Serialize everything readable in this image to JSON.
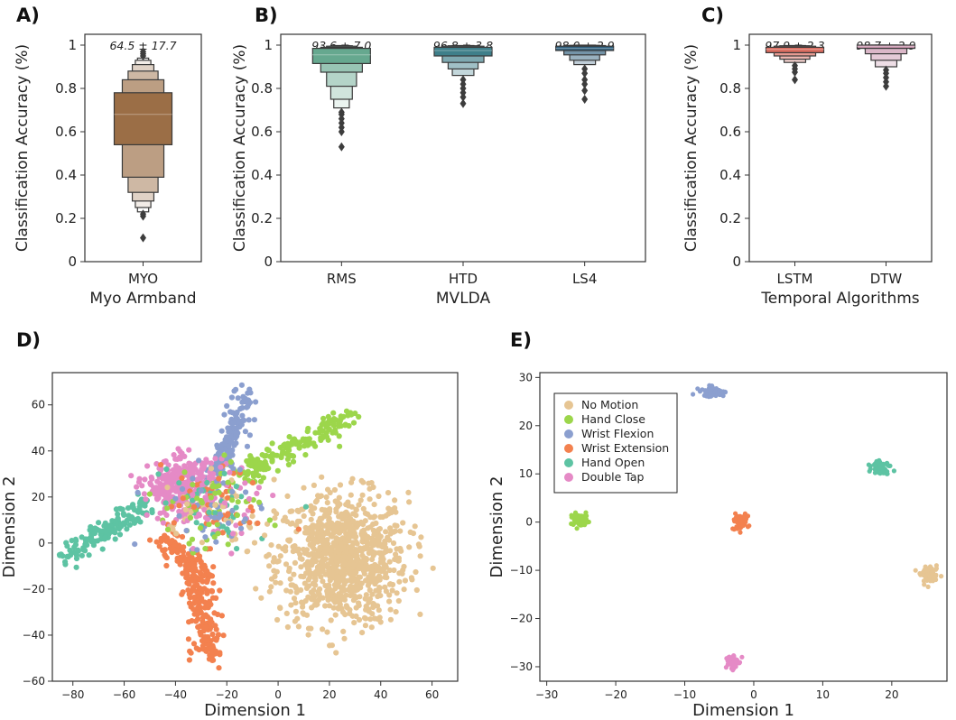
{
  "panels": {
    "a": "A)",
    "b": "B)",
    "c": "C)",
    "d": "D)",
    "e": "E)"
  },
  "colors": {
    "MYO": "#9b6e46",
    "RMS": "#66a88f",
    "HTD": "#3e7f8a",
    "LS4": "#2f5f7d",
    "LSTM": "#d96a5d",
    "DTW": "#c993ad",
    "No Motion": "#e6c593",
    "Hand Close": "#9cd64b",
    "Wrist Flexion": "#8b9fcf",
    "Wrist Extension": "#f3814f",
    "Hand Open": "#5dc3a3",
    "Double Tap": "#e58ac6"
  },
  "chart_data": [
    {
      "id": "A",
      "type": "boxen",
      "title": "",
      "ylabel": "Classification Accuracy (%)",
      "xlabel": "Myo Armband",
      "ylim": [
        0,
        1.05
      ],
      "yticks": [
        0.0,
        0.2,
        0.4,
        0.6,
        0.8,
        1.0
      ],
      "categories": [
        "MYO"
      ],
      "annotations": [
        "64.5 ± 17.7"
      ],
      "series": [
        {
          "name": "MYO",
          "median": 0.68,
          "boxes": [
            [
              0.54,
              0.78
            ],
            [
              0.39,
              0.84
            ],
            [
              0.32,
              0.88
            ],
            [
              0.28,
              0.91
            ],
            [
              0.25,
              0.93
            ],
            [
              0.23,
              0.94
            ]
          ],
          "outliers": [
            0.21,
            0.22,
            0.11,
            0.95,
            0.96,
            0.97
          ]
        }
      ]
    },
    {
      "id": "B",
      "type": "boxen",
      "title": "",
      "ylabel": "Classification Accuracy (%)",
      "xlabel": "MVLDA",
      "ylim": [
        0,
        1.05
      ],
      "yticks": [
        0.0,
        0.2,
        0.4,
        0.6,
        0.8,
        1.0
      ],
      "categories": [
        "RMS",
        "HTD",
        "LS4"
      ],
      "annotations": [
        "93.6 ± 7.0",
        "96.8 ± 3.8",
        "98.0 ± 2.9"
      ],
      "series": [
        {
          "name": "RMS",
          "median": 0.955,
          "boxes": [
            [
              0.915,
              0.985
            ],
            [
              0.875,
              0.99
            ],
            [
              0.81,
              0.995
            ],
            [
              0.75,
              0.997
            ],
            [
              0.71,
              0.998
            ]
          ],
          "outliers": [
            0.69,
            0.68,
            0.66,
            0.64,
            0.62,
            0.6,
            0.53
          ]
        },
        {
          "name": "HTD",
          "median": 0.975,
          "boxes": [
            [
              0.95,
              0.99
            ],
            [
              0.92,
              0.995
            ],
            [
              0.89,
              0.997
            ],
            [
              0.86,
              0.998
            ]
          ],
          "outliers": [
            0.84,
            0.82,
            0.8,
            0.78,
            0.76,
            0.73
          ]
        },
        {
          "name": "LS4",
          "median": 0.985,
          "boxes": [
            [
              0.975,
              0.995
            ],
            [
              0.955,
              0.998
            ],
            [
              0.93,
              0.999
            ],
            [
              0.91,
              1.0
            ]
          ],
          "outliers": [
            0.89,
            0.87,
            0.84,
            0.82,
            0.79,
            0.75
          ]
        }
      ]
    },
    {
      "id": "C",
      "type": "boxen",
      "title": "",
      "ylabel": "Classification Accuracy (%)",
      "xlabel": "Temporal Algorithms",
      "ylim": [
        0,
        1.05
      ],
      "yticks": [
        0.0,
        0.2,
        0.4,
        0.6,
        0.8,
        1.0
      ],
      "categories": [
        "LSTM",
        "DTW"
      ],
      "annotations": [
        "97.9 ± 2.3",
        "98.7 ± 2.9"
      ],
      "series": [
        {
          "name": "LSTM",
          "median": 0.98,
          "boxes": [
            [
              0.965,
              0.99
            ],
            [
              0.95,
              0.995
            ],
            [
              0.935,
              0.997
            ],
            [
              0.92,
              0.998
            ]
          ],
          "outliers": [
            0.905,
            0.89,
            0.875,
            0.84
          ]
        },
        {
          "name": "DTW",
          "median": 0.995,
          "boxes": [
            [
              0.985,
              1.0
            ],
            [
              0.96,
              1.0
            ],
            [
              0.93,
              1.0
            ],
            [
              0.9,
              1.0
            ]
          ],
          "outliers": [
            0.885,
            0.87,
            0.85,
            0.83,
            0.81
          ]
        }
      ]
    },
    {
      "id": "D",
      "type": "scatter",
      "xlabel": "Dimension 1",
      "ylabel": "Dimension 2",
      "xlim": [
        -88,
        70
      ],
      "ylim": [
        -60,
        74
      ],
      "xticks": [
        -80,
        -60,
        -40,
        -20,
        0,
        20,
        40,
        60
      ],
      "yticks": [
        -60,
        -40,
        -20,
        0,
        20,
        40,
        60
      ],
      "clusters": [
        {
          "label": "No Motion",
          "cx": 25,
          "cy": -7,
          "sx": 17,
          "sy": 19,
          "n": 900,
          "type": "blob"
        },
        {
          "label": "Hand Close",
          "type": "line",
          "pts": [
            [
              -15,
              28
            ],
            [
              5,
              42
            ],
            [
              28,
              55
            ]
          ],
          "spread": 2.5,
          "n": 180
        },
        {
          "label": "Wrist Flexion",
          "type": "line",
          "pts": [
            [
              -25,
              30
            ],
            [
              -18,
              45
            ],
            [
              -13,
              66
            ]
          ],
          "spread": 2.2,
          "n": 160
        },
        {
          "label": "Wrist Extension",
          "type": "line",
          "pts": [
            [
              -45,
              2
            ],
            [
              -32,
              -10
            ],
            [
              -30,
              -30
            ],
            [
              -27,
              -50
            ]
          ],
          "spread": 3,
          "n": 260
        },
        {
          "label": "Hand Open",
          "type": "line",
          "pts": [
            [
              -82,
              -5
            ],
            [
              -65,
              6
            ],
            [
              -52,
              17
            ]
          ],
          "spread": 2.5,
          "n": 150
        },
        {
          "label": "Double Tap",
          "cx": -37,
          "cy": 24,
          "sx": 9,
          "sy": 8,
          "n": 340,
          "type": "blob"
        },
        {
          "label": "Mixed",
          "cx": -25,
          "cy": 15,
          "sx": 10,
          "sy": 9,
          "n": 260,
          "type": "mixed"
        }
      ]
    },
    {
      "id": "E",
      "type": "scatter",
      "xlabel": "Dimension 1",
      "ylabel": "Dimension 2",
      "xlim": [
        -31,
        28
      ],
      "ylim": [
        -33,
        31
      ],
      "xticks": [
        -30,
        -20,
        -10,
        0,
        10,
        20
      ],
      "yticks": [
        -30,
        -20,
        -10,
        0,
        10,
        20,
        30
      ],
      "legend": [
        "No Motion",
        "Hand Close",
        "Wrist Flexion",
        "Wrist Extension",
        "Hand Open",
        "Double Tap"
      ],
      "legend_loc": "top-left",
      "clusters": [
        {
          "label": "No Motion",
          "cx": 25.5,
          "cy": -11,
          "sx": 0.9,
          "sy": 1.1,
          "n": 60,
          "type": "blob"
        },
        {
          "label": "Hand Close",
          "cx": -25,
          "cy": 0.3,
          "sx": 1.0,
          "sy": 0.9,
          "n": 60,
          "type": "blob"
        },
        {
          "label": "Wrist Flexion",
          "cx": -6,
          "cy": 27,
          "sx": 1.2,
          "sy": 0.7,
          "n": 60,
          "type": "blob"
        },
        {
          "label": "Wrist Extension",
          "cx": -2,
          "cy": 0,
          "sx": 0.8,
          "sy": 1.0,
          "n": 60,
          "type": "blob"
        },
        {
          "label": "Hand Open",
          "cx": 18.5,
          "cy": 11.5,
          "sx": 0.9,
          "sy": 1.0,
          "n": 60,
          "type": "blob"
        },
        {
          "label": "Double Tap",
          "cx": -3.2,
          "cy": -29,
          "sx": 0.6,
          "sy": 1.1,
          "n": 60,
          "type": "blob"
        }
      ]
    }
  ]
}
